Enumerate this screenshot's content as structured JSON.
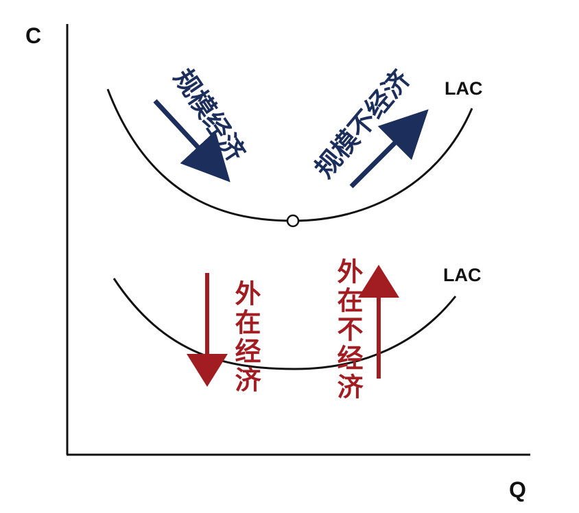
{
  "axes": {
    "y_label": "C",
    "x_label": "Q"
  },
  "upper_curve": {
    "label": "LAC",
    "left_annotation": "规模经济",
    "right_annotation": "规模不经济",
    "annotation_color": "#1c2f5c"
  },
  "lower_curve": {
    "label": "LAC",
    "left_annotation": "外在经济",
    "right_annotation": "外在不经济",
    "annotation_color": "#a11d22"
  },
  "colors": {
    "axis": "#111111",
    "curve": "#111111"
  }
}
